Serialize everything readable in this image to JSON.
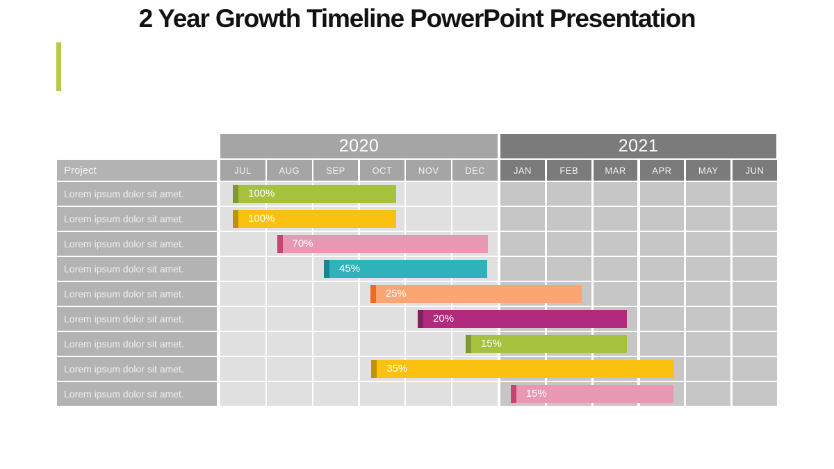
{
  "title": "2 Year Growth Timeline PowerPoint Presentation",
  "accent_bar_color": "#b4cb45",
  "colors": {
    "project_cell": "#b3b3b3",
    "year_2020": "#a5a5a5",
    "year_2021": "#7b7b7b",
    "cell_2020": "#e0e0e0",
    "cell_2021": "#c6c6c6",
    "bar_text": "#ffffff",
    "title_text": "#121212"
  },
  "chart_data": {
    "type": "bar",
    "subtype": "gantt-timeline",
    "title": "2 Year Growth Timeline PowerPoint Presentation",
    "project_column_header": "Project",
    "axis": {
      "months_total": 12,
      "start": "JUL 2020",
      "end": "JUN 2021",
      "grid": "white lines between month columns and rows"
    },
    "year_groups": [
      {
        "label": "2020",
        "months": [
          "JUL",
          "AUG",
          "SEP",
          "OCT",
          "NOV",
          "DEC"
        ]
      },
      {
        "label": "2021",
        "months": [
          "JAN",
          "FEB",
          "MAR",
          "APR",
          "MAY",
          "JUN"
        ]
      }
    ],
    "tasks": [
      {
        "label": "Lorem ipsum dolor sit amet.",
        "progress_label": "100%",
        "start_month": 0.27,
        "end_month": 3.78,
        "color_name": "green",
        "fill": "#a6c13d",
        "edge": "#7f9833"
      },
      {
        "label": "Lorem ipsum dolor sit amet.",
        "progress_label": "100%",
        "start_month": 0.27,
        "end_month": 3.78,
        "color_name": "yellow",
        "fill": "#fbc110",
        "edge": "#bf920d"
      },
      {
        "label": "Lorem ipsum dolor sit amet.",
        "progress_label": "70%",
        "start_month": 1.22,
        "end_month": 5.76,
        "color_name": "pink",
        "fill": "#e998b3",
        "edge": "#c64573"
      },
      {
        "label": "Lorem ipsum dolor sit amet.",
        "progress_label": "45%",
        "start_month": 2.23,
        "end_month": 5.74,
        "color_name": "teal",
        "fill": "#2fb3ba",
        "edge": "#1b858d"
      },
      {
        "label": "Lorem ipsum dolor sit amet.",
        "progress_label": "25%",
        "start_month": 3.23,
        "end_month": 7.78,
        "color_name": "salmon",
        "fill": "#fba575",
        "edge": "#f26a1b"
      },
      {
        "label": "Lorem ipsum dolor sit amet.",
        "progress_label": "20%",
        "start_month": 4.25,
        "end_month": 8.75,
        "color_name": "magenta",
        "fill": "#b22a7d",
        "edge": "#85205e"
      },
      {
        "label": "Lorem ipsum dolor sit amet.",
        "progress_label": "15%",
        "start_month": 5.28,
        "end_month": 8.75,
        "color_name": "green",
        "fill": "#a6c13d",
        "edge": "#7f9833"
      },
      {
        "label": "Lorem ipsum dolor sit amet.",
        "progress_label": "35%",
        "start_month": 3.25,
        "end_month": 9.77,
        "color_name": "yellow",
        "fill": "#fbc110",
        "edge": "#bf920d"
      },
      {
        "label": "Lorem ipsum dolor sit amet.",
        "progress_label": "15%",
        "start_month": 6.25,
        "end_month": 9.75,
        "color_name": "pink",
        "fill": "#e998b3",
        "edge": "#c64573"
      }
    ]
  }
}
